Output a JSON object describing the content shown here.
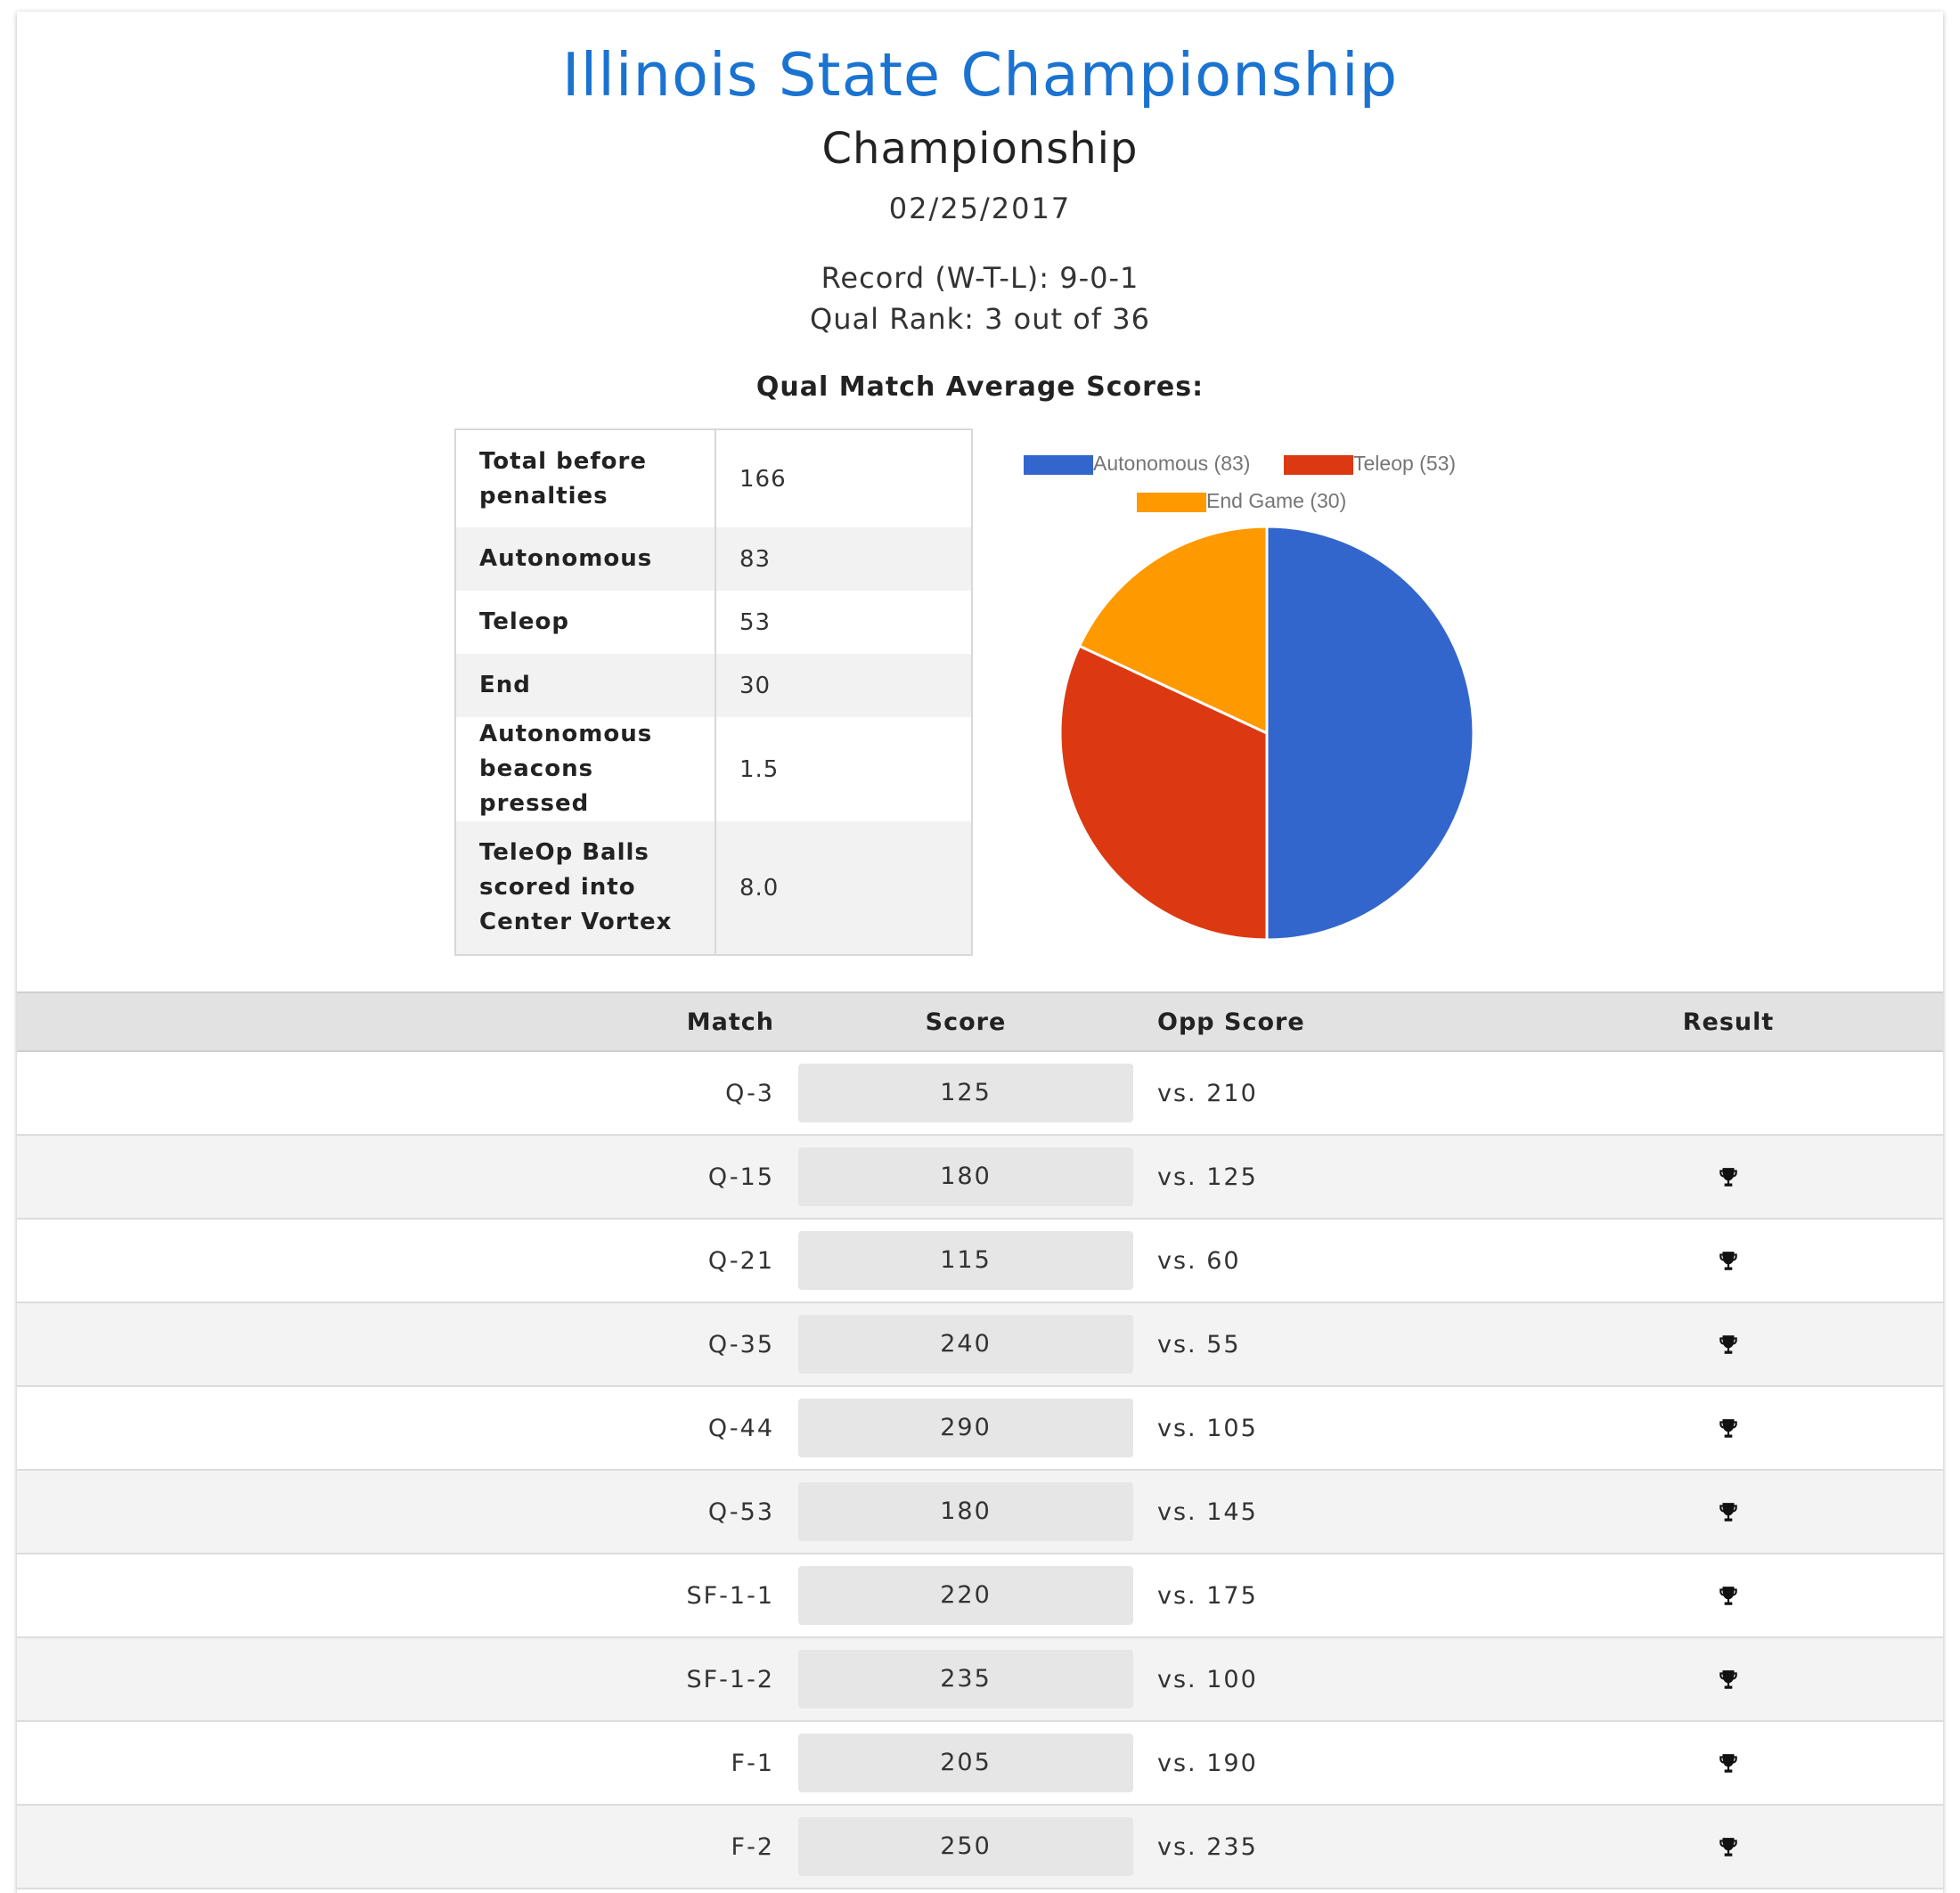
{
  "header": {
    "title": "Illinois State Championship",
    "subtitle": "Championship",
    "date": "02/25/2017",
    "record": "Record (W-T-L): 9-0-1",
    "rank": "Qual Rank: 3 out of 36",
    "averages_heading": "Qual Match Average Scores:"
  },
  "averages": [
    {
      "label": "Total before penalties",
      "value": "166"
    },
    {
      "label": "Autonomous",
      "value": "83"
    },
    {
      "label": "Teleop",
      "value": "53"
    },
    {
      "label": "End",
      "value": "30"
    },
    {
      "label": "Autonomous beacons pressed",
      "value": "1.5"
    },
    {
      "label": "TeleOp Balls scored into Center Vortex",
      "value": "8.0"
    }
  ],
  "chart_data": {
    "type": "pie",
    "title": "",
    "categories": [
      "Autonomous (83)",
      "Teleop (53)",
      "End Game (30)"
    ],
    "values": [
      83,
      53,
      30
    ],
    "colors": [
      "#3366cc",
      "#dc3912",
      "#ff9900"
    ],
    "legend": "top"
  },
  "matches": {
    "columns": [
      "Match",
      "Score",
      "Opp Score",
      "Result"
    ],
    "rows": [
      {
        "match": "Q-3",
        "score": "125",
        "opp": "vs. 210",
        "win": false
      },
      {
        "match": "Q-15",
        "score": "180",
        "opp": "vs. 125",
        "win": true
      },
      {
        "match": "Q-21",
        "score": "115",
        "opp": "vs. 60",
        "win": true
      },
      {
        "match": "Q-35",
        "score": "240",
        "opp": "vs. 55",
        "win": true
      },
      {
        "match": "Q-44",
        "score": "290",
        "opp": "vs. 105",
        "win": true
      },
      {
        "match": "Q-53",
        "score": "180",
        "opp": "vs. 145",
        "win": true
      },
      {
        "match": "SF-1-1",
        "score": "220",
        "opp": "vs. 175",
        "win": true
      },
      {
        "match": "SF-1-2",
        "score": "235",
        "opp": "vs. 100",
        "win": true
      },
      {
        "match": "F-1",
        "score": "205",
        "opp": "vs. 190",
        "win": true
      },
      {
        "match": "F-2",
        "score": "250",
        "opp": "vs. 235",
        "win": true
      }
    ]
  },
  "icons": {
    "result_win": "trophy-icon"
  }
}
